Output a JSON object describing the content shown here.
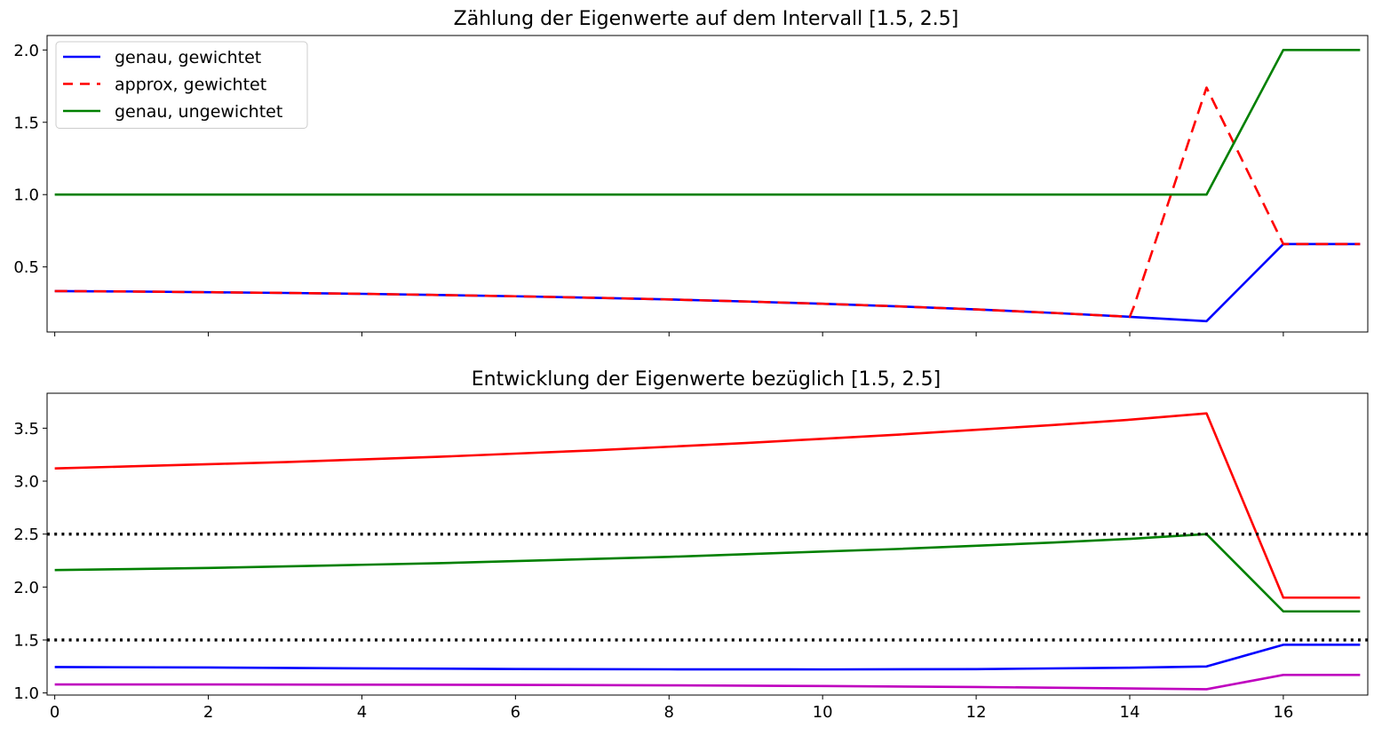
{
  "chart_data": [
    {
      "type": "line",
      "title": "Zählung der Eigenwerte auf dem Intervall [1.5, 2.5]",
      "xlabel": "",
      "ylabel": "",
      "xlim": [
        -0.1,
        17.1
      ],
      "ylim": [
        0.05,
        2.1
      ],
      "yticks": [
        0.5,
        1.0,
        1.5,
        2.0
      ],
      "yticklabels": [
        "0.5",
        "1.0",
        "1.5",
        "2.0"
      ],
      "xticks": [
        0,
        2,
        4,
        6,
        8,
        10,
        12,
        14,
        16
      ],
      "show_xticklabels": false,
      "grid": false,
      "legend_position": "upper-left",
      "series": [
        {
          "name": "genau, gewichtet",
          "color": "#0000ff",
          "dash": "solid",
          "x": [
            0,
            1,
            2,
            3,
            4,
            5,
            6,
            7,
            8,
            9,
            10,
            11,
            12,
            13,
            14,
            15,
            16,
            17
          ],
          "values": [
            0.333,
            0.33,
            0.325,
            0.32,
            0.314,
            0.306,
            0.297,
            0.287,
            0.275,
            0.261,
            0.245,
            0.227,
            0.206,
            0.182,
            0.155,
            0.125,
            0.658,
            0.658
          ]
        },
        {
          "name": "approx, gewichtet",
          "color": "#ff0000",
          "dash": "dashed",
          "x": [
            0,
            1,
            2,
            3,
            4,
            5,
            6,
            7,
            8,
            9,
            10,
            11,
            12,
            13,
            14,
            14.05,
            15,
            16,
            17
          ],
          "values": [
            0.333,
            0.33,
            0.325,
            0.32,
            0.314,
            0.306,
            0.297,
            0.287,
            0.275,
            0.261,
            0.245,
            0.227,
            0.206,
            0.182,
            0.155,
            0.22,
            1.74,
            0.658,
            0.658
          ]
        },
        {
          "name": "genau, ungewichtet",
          "color": "#008000",
          "dash": "solid",
          "x": [
            0,
            15,
            16,
            17
          ],
          "values": [
            1.0,
            1.0,
            2.0,
            2.0
          ]
        }
      ]
    },
    {
      "type": "line",
      "title": "Entwicklung der Eigenwerte bezüglich [1.5, 2.5]",
      "xlabel": "",
      "ylabel": "",
      "xlim": [
        -0.1,
        17.1
      ],
      "ylim": [
        0.98,
        3.83
      ],
      "yticks": [
        1.0,
        1.5,
        2.0,
        2.5,
        3.0,
        3.5
      ],
      "yticklabels": [
        "1.0",
        "1.5",
        "2.0",
        "2.5",
        "3.0",
        "3.5"
      ],
      "xticks": [
        0,
        2,
        4,
        6,
        8,
        10,
        12,
        14,
        16
      ],
      "xticklabels": [
        "0",
        "2",
        "4",
        "6",
        "8",
        "10",
        "12",
        "14",
        "16"
      ],
      "grid": false,
      "series": [
        {
          "color": "#ff0000",
          "dash": "solid",
          "x": [
            0,
            1,
            2,
            3,
            4,
            5,
            6,
            7,
            8,
            9,
            10,
            11,
            12,
            13,
            14,
            15,
            16,
            17
          ],
          "values": [
            3.12,
            3.14,
            3.16,
            3.18,
            3.205,
            3.23,
            3.26,
            3.29,
            3.325,
            3.36,
            3.4,
            3.44,
            3.485,
            3.53,
            3.58,
            3.64,
            1.9,
            1.9
          ]
        },
        {
          "color": "#008000",
          "dash": "solid",
          "x": [
            0,
            1,
            2,
            3,
            4,
            5,
            6,
            7,
            8,
            9,
            10,
            11,
            12,
            13,
            14,
            15,
            16,
            17
          ],
          "values": [
            2.16,
            2.17,
            2.18,
            2.195,
            2.21,
            2.225,
            2.245,
            2.265,
            2.285,
            2.31,
            2.335,
            2.36,
            2.39,
            2.42,
            2.455,
            2.5,
            1.77,
            1.77
          ]
        },
        {
          "color": "#0000ff",
          "dash": "solid",
          "x": [
            0,
            2,
            4,
            6,
            8,
            10,
            12,
            14,
            15,
            16,
            17
          ],
          "values": [
            1.245,
            1.24,
            1.232,
            1.226,
            1.223,
            1.222,
            1.225,
            1.238,
            1.25,
            1.455,
            1.455
          ]
        },
        {
          "color": "#bf00bf",
          "dash": "solid",
          "x": [
            0,
            2,
            4,
            6,
            8,
            10,
            12,
            14,
            15,
            16,
            17
          ],
          "values": [
            1.08,
            1.08,
            1.078,
            1.076,
            1.072,
            1.065,
            1.056,
            1.042,
            1.035,
            1.17,
            1.17
          ]
        },
        {
          "color": "#000000",
          "dash": "dotted",
          "x": [
            -0.1,
            17.1
          ],
          "values": [
            2.5,
            2.5
          ]
        },
        {
          "color": "#000000",
          "dash": "dotted",
          "x": [
            -0.1,
            17.1
          ],
          "values": [
            1.5,
            1.5
          ]
        }
      ]
    }
  ]
}
